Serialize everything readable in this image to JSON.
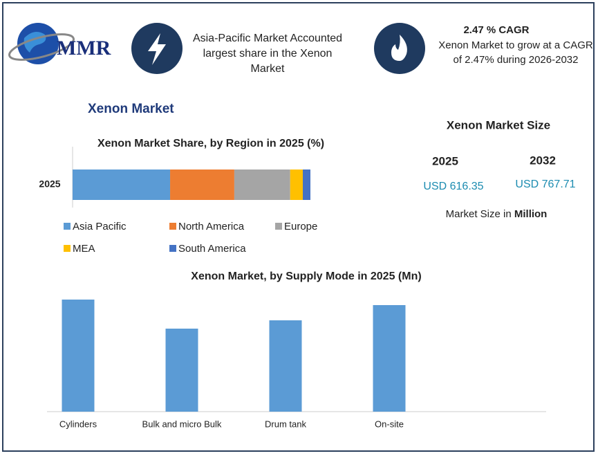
{
  "brand": "MMR",
  "highlight": {
    "lines": [
      "Asia-Pacific Market Accounted",
      "largest share in the Xenon",
      "Market"
    ]
  },
  "cagr": {
    "title": "2.47 % CAGR",
    "lines": [
      "Xenon Market to grow at a CAGR",
      "of 2.47% during 2026-2032"
    ]
  },
  "heading": "Xenon Market",
  "market_size": {
    "title": "Xenon Market Size",
    "years": [
      "2025",
      "2032"
    ],
    "values": [
      "USD 616.35",
      "USD 767.71"
    ],
    "note": "Market Size in",
    "note_bold": "Million"
  },
  "chart_data": [
    {
      "type": "stacked-hbar",
      "title": "Xenon Market Share, by Region in 2025 (%)",
      "categories": [
        "2025"
      ],
      "series": [
        {
          "name": "Asia Pacific",
          "color": "#5b9bd5",
          "values": [
            41
          ]
        },
        {
          "name": "North America",
          "color": "#ed7d31",
          "values": [
            27
          ]
        },
        {
          "name": "Europe",
          "color": "#a5a5a5",
          "values": [
            23.5
          ]
        },
        {
          "name": "MEA",
          "color": "#ffc000",
          "values": [
            5.3
          ]
        },
        {
          "name": "South America",
          "color": "#4472c4",
          "values": [
            3.2
          ]
        }
      ],
      "xlim": [
        0,
        100
      ]
    },
    {
      "type": "bar",
      "title": "Xenon Market, by Supply Mode in 2025 (Mn)",
      "categories": [
        "Cylinders",
        "Bulk and micro Bulk",
        "Drum tank",
        "On-site"
      ],
      "values": [
        162,
        120,
        132,
        154
      ],
      "color": "#5b9bd5",
      "ylim": [
        0,
        170
      ]
    }
  ]
}
